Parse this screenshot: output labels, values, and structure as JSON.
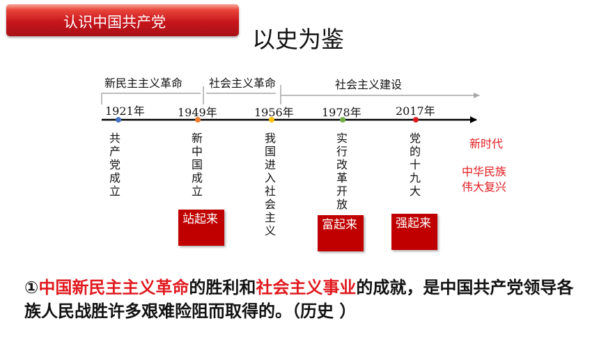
{
  "header": {
    "banner_text": "认识中国共产党",
    "title": "以史为鉴"
  },
  "timeline": {
    "periods": [
      {
        "label": "新民主主义革命"
      },
      {
        "label": "社会主义革命"
      },
      {
        "label": "社会主义建设"
      }
    ],
    "points": [
      {
        "year": "1921年",
        "color": "#4472c4",
        "event": "共产党成立"
      },
      {
        "year": "1949年",
        "color": "#ed7d31",
        "event": "新中国成立",
        "badge": "站起来"
      },
      {
        "year": "1956年",
        "color": "#ffc000",
        "event": "我国进入社会主义"
      },
      {
        "year": "1978年",
        "color": "#70ad47",
        "event": "实行改革开放",
        "badge": "富起来"
      },
      {
        "year": "2017年",
        "color": "#e0191e",
        "event": "党的十九大",
        "badge": "强起来"
      }
    ],
    "notes": {
      "new_era": "新时代",
      "rejuvenation": "中华民族伟大复兴"
    }
  },
  "summary": {
    "prefix": "①",
    "hl1": "中国新民主主义革命",
    "mid1": "的胜利和",
    "hl2": "社会主义事业",
    "rest": "的成就，是中国共产党领导各族人民战胜许多艰难险阻而取得的。（历史 ）"
  }
}
